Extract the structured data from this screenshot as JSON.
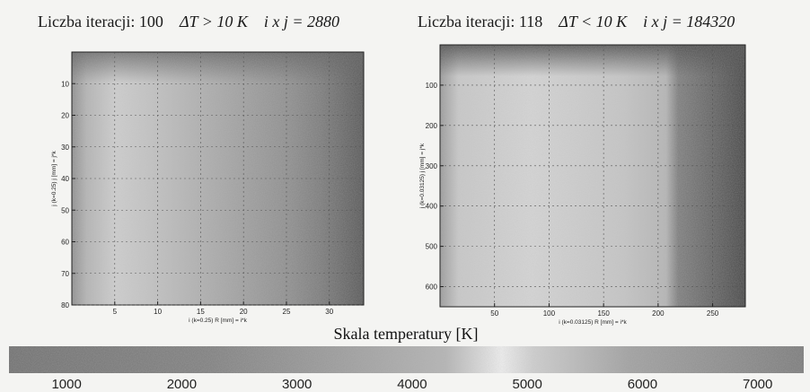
{
  "titles": {
    "left": {
      "iter": "Liczba iteracji: 100",
      "dt": "ΔT > 10 K",
      "grid": "i x j = 2880"
    },
    "right": {
      "iter": "Liczba iteracji: 118",
      "dt": "ΔT < 10 K",
      "grid": "i x j = 184320"
    }
  },
  "chart_data": [
    {
      "type": "heatmap",
      "xlabel": "i  (k=0.25)  R [mm] = i*k",
      "ylabel": "j  (k=0.25)  j [mm] = j*k",
      "xticks": [
        5,
        10,
        15,
        20,
        25,
        30
      ],
      "yticks": [
        10,
        20,
        30,
        40,
        50,
        60,
        70,
        80
      ],
      "xlim": [
        0,
        34
      ],
      "ylim": [
        80,
        0
      ]
    },
    {
      "type": "heatmap",
      "xlabel": "i  (k=0.03125)  R [mm] = i*k",
      "ylabel": "j  (k=0.03125)  j [mm] = j*k",
      "xticks": [
        50,
        100,
        150,
        200,
        250
      ],
      "yticks": [
        100,
        200,
        300,
        400,
        500,
        600
      ],
      "xlim": [
        0,
        280
      ],
      "ylim": [
        650,
        0
      ]
    }
  ],
  "colorbar": {
    "title": "Skala temperatury [K]",
    "ticks": [
      "1000",
      "2000",
      "3000",
      "4000",
      "5000",
      "6000",
      "7000"
    ],
    "tick_values": [
      1000,
      2000,
      3000,
      4000,
      5000,
      6000,
      7000
    ],
    "range": [
      500,
      7400
    ]
  }
}
